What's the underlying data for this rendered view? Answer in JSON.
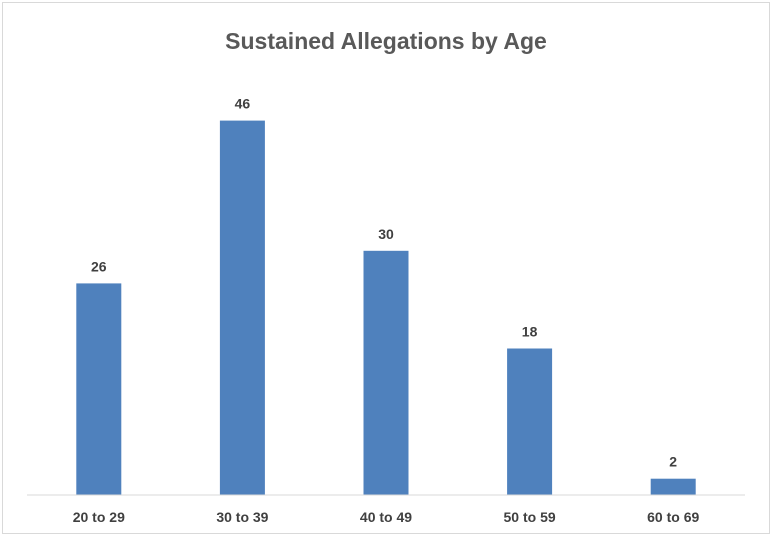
{
  "chart_data": {
    "type": "bar",
    "title": "Sustained Allegations by Age",
    "xlabel": "",
    "ylabel": "",
    "categories": [
      "20 to 29",
      "30 to 39",
      "40 to 49",
      "50 to 59",
      "60 to 69"
    ],
    "values": [
      26,
      46,
      30,
      18,
      2
    ],
    "data_labels": [
      "26",
      "46",
      "30",
      "18",
      "2"
    ],
    "ylim": [
      0,
      50
    ],
    "grid": false,
    "legend": "none",
    "bar_color": "#4f81bd",
    "axis_color": "#d9d9d9"
  }
}
